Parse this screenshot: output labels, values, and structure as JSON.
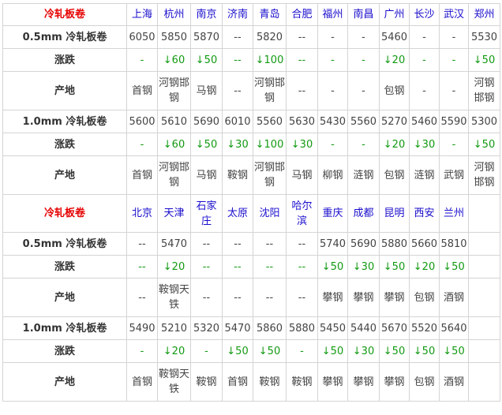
{
  "sections": [
    {
      "header": {
        "label": "冷轧板卷",
        "cities": [
          "上海",
          "杭州",
          "南京",
          "济南",
          "青岛",
          "合肥",
          "福州",
          "南昌",
          "广州",
          "长沙",
          "武汉",
          "郑州"
        ]
      },
      "rows": [
        {
          "label": "0.5mm 冷轧板卷",
          "kind": "price",
          "values": [
            "6050",
            "5850",
            "5870",
            "--",
            "5820",
            "--",
            "-",
            "-",
            "5460",
            "-",
            "-",
            "5530"
          ]
        },
        {
          "label": "涨跌",
          "kind": "change",
          "values": [
            "-",
            "↓60",
            "↓50",
            "--",
            "↓100",
            "--",
            "-",
            "-",
            "↓20",
            "-",
            "-",
            "↓50"
          ]
        },
        {
          "label": "产地",
          "kind": "origin",
          "values": [
            "首钢",
            "河钢邯钢",
            "马钢",
            "--",
            "河钢邯钢",
            "--",
            "-",
            "-",
            "包钢",
            "-",
            "-",
            "河钢邯钢"
          ]
        },
        {
          "label": "1.0mm 冷轧板卷",
          "kind": "price",
          "values": [
            "5600",
            "5610",
            "5690",
            "6010",
            "5560",
            "5630",
            "5430",
            "5560",
            "5270",
            "5460",
            "5590",
            "5300"
          ]
        },
        {
          "label": "涨跌",
          "kind": "change",
          "values": [
            "-",
            "↓60",
            "↓50",
            "↓30",
            "↓100",
            "↓30",
            "-",
            "-",
            "↓20",
            "↓30",
            "-",
            "↓50"
          ]
        },
        {
          "label": "产地",
          "kind": "origin",
          "values": [
            "首钢",
            "河钢邯钢",
            "马钢",
            "鞍钢",
            "河钢邯钢",
            "马钢",
            "柳钢",
            "涟钢",
            "包钢",
            "涟钢",
            "武钢",
            "河钢邯钢"
          ]
        }
      ]
    },
    {
      "header": {
        "label": "冷轧板卷",
        "cities": [
          "北京",
          "天津",
          "石家庄",
          "太原",
          "沈阳",
          "哈尔滨",
          "重庆",
          "成都",
          "昆明",
          "西安",
          "兰州"
        ]
      },
      "rows": [
        {
          "label": "0.5mm 冷轧板卷",
          "kind": "price",
          "values": [
            "--",
            "5470",
            "--",
            "--",
            "--",
            "--",
            "5740",
            "5690",
            "5880",
            "5660",
            "5810"
          ]
        },
        {
          "label": "涨跌",
          "kind": "change",
          "values": [
            "--",
            "↓20",
            "--",
            "--",
            "--",
            "--",
            "↓50",
            "↓30",
            "↓50",
            "↓20",
            "↓50"
          ]
        },
        {
          "label": "产地",
          "kind": "origin",
          "values": [
            "--",
            "鞍钢天铁",
            "--",
            "--",
            "--",
            "--",
            "攀钢",
            "攀钢",
            "攀钢",
            "包钢",
            "酒钢"
          ]
        },
        {
          "label": "1.0mm 冷轧板卷",
          "kind": "price",
          "values": [
            "5490",
            "5210",
            "5320",
            "5470",
            "5860",
            "5880",
            "5450",
            "5440",
            "5670",
            "5520",
            "5640"
          ]
        },
        {
          "label": "涨跌",
          "kind": "change",
          "values": [
            "-",
            "↓20",
            "-",
            "↓50",
            "↓50",
            "-",
            "↓50",
            "↓30",
            "↓50",
            "↓50",
            "↓50"
          ]
        },
        {
          "label": "产地",
          "kind": "origin",
          "values": [
            "首钢",
            "鞍钢天铁",
            "鞍钢",
            "首钢",
            "鞍钢",
            "鞍钢",
            "攀钢",
            "攀钢",
            "攀钢",
            "包钢",
            "酒钢"
          ]
        }
      ]
    }
  ]
}
